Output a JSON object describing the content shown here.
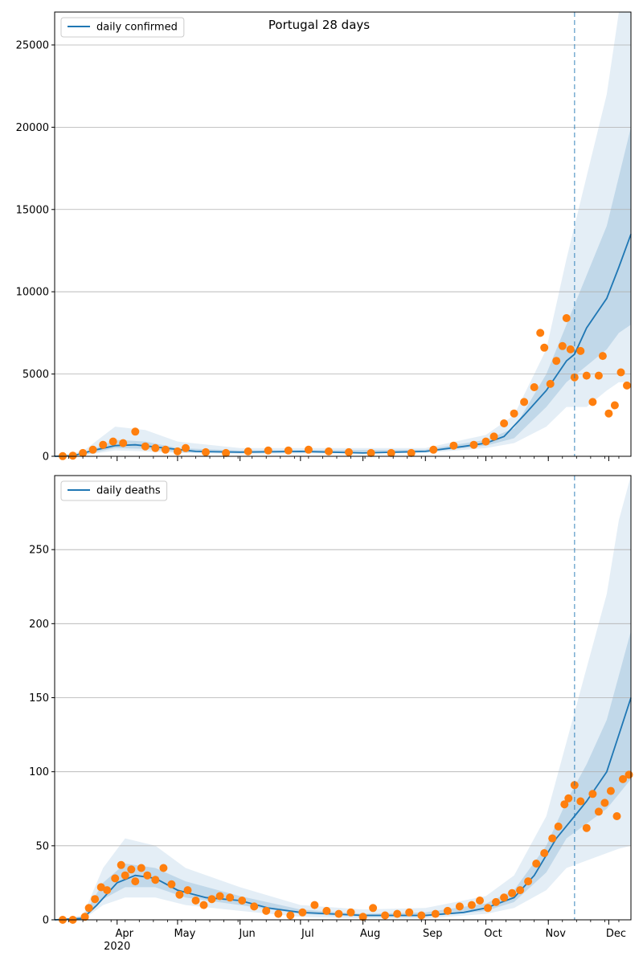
{
  "title": "Portugal 28 days",
  "colors": {
    "line": "#1f77b4",
    "points": "#ff7f0e",
    "band": "#1f77b4",
    "forecast_line": "#1f77b4",
    "grid": "#b0b0b0"
  },
  "chart_data": [
    {
      "type": "line",
      "legend": "daily confirmed",
      "legend_location": "upper-left",
      "grid": "y",
      "x_range": [
        "2020-03-01",
        "2020-12-12"
      ],
      "ylim": [
        0,
        27000
      ],
      "yticks": [
        0,
        5000,
        10000,
        15000,
        20000,
        25000
      ],
      "forecast_start": "2020-11-14",
      "model_curve": [
        [
          "2020-03-01",
          0
        ],
        [
          "2020-03-10",
          30
        ],
        [
          "2020-03-20",
          350
        ],
        [
          "2020-03-31",
          650
        ],
        [
          "2020-04-10",
          700
        ],
        [
          "2020-04-25",
          500
        ],
        [
          "2020-05-10",
          300
        ],
        [
          "2020-06-01",
          250
        ],
        [
          "2020-07-01",
          300
        ],
        [
          "2020-08-01",
          200
        ],
        [
          "2020-09-01",
          300
        ],
        [
          "2020-09-20",
          600
        ],
        [
          "2020-10-01",
          800
        ],
        [
          "2020-10-10",
          1200
        ],
        [
          "2020-10-20",
          2500
        ],
        [
          "2020-10-31",
          4000
        ],
        [
          "2020-11-10",
          5800
        ],
        [
          "2020-11-14",
          6200
        ],
        [
          "2020-11-20",
          7800
        ],
        [
          "2020-11-30",
          9600
        ],
        [
          "2020-12-06",
          11500
        ],
        [
          "2020-12-12",
          13500
        ]
      ],
      "band_outer": [
        [
          "2020-03-01",
          0,
          0
        ],
        [
          "2020-03-15",
          50,
          300
        ],
        [
          "2020-03-31",
          350,
          1800
        ],
        [
          "2020-04-15",
          300,
          1600
        ],
        [
          "2020-05-01",
          200,
          900
        ],
        [
          "2020-06-01",
          150,
          500
        ],
        [
          "2020-09-01",
          200,
          500
        ],
        [
          "2020-10-01",
          500,
          1300
        ],
        [
          "2020-10-15",
          800,
          2500
        ],
        [
          "2020-10-31",
          1800,
          6500
        ],
        [
          "2020-11-10",
          3000,
          12000
        ],
        [
          "2020-11-20",
          3000,
          17000
        ],
        [
          "2020-11-30",
          4000,
          22000
        ],
        [
          "2020-12-06",
          4500,
          27000
        ],
        [
          "2020-12-12",
          4500,
          27000
        ]
      ],
      "band_inner": [
        [
          "2020-03-01",
          0,
          0
        ],
        [
          "2020-03-15",
          80,
          150
        ],
        [
          "2020-03-31",
          500,
          1000
        ],
        [
          "2020-04-15",
          450,
          900
        ],
        [
          "2020-05-01",
          250,
          500
        ],
        [
          "2020-06-01",
          200,
          350
        ],
        [
          "2020-09-01",
          250,
          400
        ],
        [
          "2020-10-01",
          650,
          1000
        ],
        [
          "2020-10-15",
          1100,
          1700
        ],
        [
          "2020-10-31",
          3000,
          5000
        ],
        [
          "2020-11-10",
          4500,
          8000
        ],
        [
          "2020-11-20",
          5500,
          11000
        ],
        [
          "2020-11-30",
          6500,
          14000
        ],
        [
          "2020-12-06",
          7500,
          17000
        ],
        [
          "2020-12-12",
          8000,
          20000
        ]
      ],
      "observed": [
        [
          "2020-03-05",
          10
        ],
        [
          "2020-03-10",
          40
        ],
        [
          "2020-03-15",
          200
        ],
        [
          "2020-03-20",
          400
        ],
        [
          "2020-03-25",
          700
        ],
        [
          "2020-03-30",
          900
        ],
        [
          "2020-04-04",
          800
        ],
        [
          "2020-04-10",
          1500
        ],
        [
          "2020-04-15",
          600
        ],
        [
          "2020-04-20",
          500
        ],
        [
          "2020-04-25",
          400
        ],
        [
          "2020-05-01",
          300
        ],
        [
          "2020-05-05",
          500
        ],
        [
          "2020-05-15",
          250
        ],
        [
          "2020-05-25",
          200
        ],
        [
          "2020-06-05",
          300
        ],
        [
          "2020-06-15",
          350
        ],
        [
          "2020-06-25",
          350
        ],
        [
          "2020-07-05",
          400
        ],
        [
          "2020-07-15",
          300
        ],
        [
          "2020-07-25",
          250
        ],
        [
          "2020-08-05",
          200
        ],
        [
          "2020-08-15",
          200
        ],
        [
          "2020-08-25",
          200
        ],
        [
          "2020-09-05",
          400
        ],
        [
          "2020-09-15",
          650
        ],
        [
          "2020-09-25",
          700
        ],
        [
          "2020-10-01",
          900
        ],
        [
          "2020-10-05",
          1200
        ],
        [
          "2020-10-10",
          2000
        ],
        [
          "2020-10-15",
          2600
        ],
        [
          "2020-10-20",
          3300
        ],
        [
          "2020-10-25",
          4200
        ],
        [
          "2020-10-28",
          7500
        ],
        [
          "2020-10-30",
          6600
        ],
        [
          "2020-11-02",
          4400
        ],
        [
          "2020-11-05",
          5800
        ],
        [
          "2020-11-08",
          6700
        ],
        [
          "2020-11-10",
          8400
        ],
        [
          "2020-11-12",
          6500
        ],
        [
          "2020-11-14",
          4800
        ],
        [
          "2020-11-17",
          6400
        ],
        [
          "2020-11-20",
          4900
        ],
        [
          "2020-11-23",
          3300
        ],
        [
          "2020-11-26",
          4900
        ],
        [
          "2020-11-28",
          6100
        ],
        [
          "2020-12-01",
          2600
        ],
        [
          "2020-12-04",
          3100
        ],
        [
          "2020-12-07",
          5100
        ],
        [
          "2020-12-10",
          4300
        ]
      ]
    },
    {
      "type": "line",
      "legend": "daily deaths",
      "legend_location": "upper-left",
      "grid": "y",
      "x_range": [
        "2020-03-01",
        "2020-12-12"
      ],
      "ylim": [
        0,
        300
      ],
      "yticks": [
        0,
        50,
        100,
        150,
        200,
        250
      ],
      "xticks": [
        "Apr",
        "May",
        "Jun",
        "Jul",
        "Aug",
        "Sep",
        "Oct",
        "Nov",
        "Dec"
      ],
      "xtick_dates": [
        "2020-04-01",
        "2020-05-01",
        "2020-06-01",
        "2020-07-01",
        "2020-08-01",
        "2020-09-01",
        "2020-10-01",
        "2020-11-01",
        "2020-12-01"
      ],
      "year_label": "2020",
      "forecast_start": "2020-11-14",
      "model_curve": [
        [
          "2020-03-01",
          0
        ],
        [
          "2020-03-15",
          1
        ],
        [
          "2020-03-22",
          10
        ],
        [
          "2020-04-01",
          25
        ],
        [
          "2020-04-10",
          30
        ],
        [
          "2020-04-20",
          28
        ],
        [
          "2020-05-01",
          20
        ],
        [
          "2020-05-15",
          15
        ],
        [
          "2020-06-01",
          13
        ],
        [
          "2020-06-15",
          8
        ],
        [
          "2020-07-01",
          5
        ],
        [
          "2020-08-01",
          3
        ],
        [
          "2020-09-01",
          3
        ],
        [
          "2020-09-20",
          5
        ],
        [
          "2020-10-01",
          8
        ],
        [
          "2020-10-15",
          15
        ],
        [
          "2020-10-25",
          30
        ],
        [
          "2020-11-05",
          55
        ],
        [
          "2020-11-14",
          70
        ],
        [
          "2020-11-20",
          80
        ],
        [
          "2020-11-30",
          100
        ],
        [
          "2020-12-06",
          125
        ],
        [
          "2020-12-12",
          150
        ]
      ],
      "band_outer": [
        [
          "2020-03-01",
          0,
          0
        ],
        [
          "2020-03-15",
          0,
          3
        ],
        [
          "2020-03-25",
          10,
          35
        ],
        [
          "2020-04-05",
          15,
          55
        ],
        [
          "2020-04-20",
          15,
          50
        ],
        [
          "2020-05-05",
          10,
          35
        ],
        [
          "2020-06-01",
          6,
          22
        ],
        [
          "2020-07-01",
          2,
          10
        ],
        [
          "2020-08-01",
          1,
          7
        ],
        [
          "2020-09-01",
          1,
          8
        ],
        [
          "2020-10-01",
          4,
          16
        ],
        [
          "2020-10-15",
          8,
          30
        ],
        [
          "2020-10-31",
          20,
          70
        ],
        [
          "2020-11-10",
          35,
          120
        ],
        [
          "2020-11-20",
          40,
          170
        ],
        [
          "2020-11-30",
          45,
          220
        ],
        [
          "2020-12-06",
          48,
          270
        ],
        [
          "2020-12-12",
          50,
          300
        ]
      ],
      "band_inner": [
        [
          "2020-03-01",
          0,
          0
        ],
        [
          "2020-03-15",
          0,
          2
        ],
        [
          "2020-03-25",
          14,
          25
        ],
        [
          "2020-04-05",
          22,
          38
        ],
        [
          "2020-04-20",
          22,
          35
        ],
        [
          "2020-05-05",
          15,
          26
        ],
        [
          "2020-06-01",
          10,
          16
        ],
        [
          "2020-07-01",
          4,
          7
        ],
        [
          "2020-08-01",
          2,
          4
        ],
        [
          "2020-09-01",
          2,
          5
        ],
        [
          "2020-10-01",
          6,
          11
        ],
        [
          "2020-10-15",
          12,
          20
        ],
        [
          "2020-10-31",
          32,
          50
        ],
        [
          "2020-11-10",
          55,
          80
        ],
        [
          "2020-11-20",
          65,
          105
        ],
        [
          "2020-11-30",
          75,
          135
        ],
        [
          "2020-12-06",
          85,
          165
        ],
        [
          "2020-12-12",
          95,
          195
        ]
      ],
      "observed": [
        [
          "2020-03-05",
          0
        ],
        [
          "2020-03-10",
          0
        ],
        [
          "2020-03-16",
          2
        ],
        [
          "2020-03-18",
          8
        ],
        [
          "2020-03-21",
          14
        ],
        [
          "2020-03-24",
          22
        ],
        [
          "2020-03-27",
          20
        ],
        [
          "2020-03-31",
          28
        ],
        [
          "2020-04-03",
          37
        ],
        [
          "2020-04-05",
          30
        ],
        [
          "2020-04-08",
          34
        ],
        [
          "2020-04-10",
          26
        ],
        [
          "2020-04-13",
          35
        ],
        [
          "2020-04-16",
          30
        ],
        [
          "2020-04-20",
          27
        ],
        [
          "2020-04-24",
          35
        ],
        [
          "2020-04-28",
          24
        ],
        [
          "2020-05-02",
          17
        ],
        [
          "2020-05-06",
          20
        ],
        [
          "2020-05-10",
          13
        ],
        [
          "2020-05-14",
          10
        ],
        [
          "2020-05-18",
          14
        ],
        [
          "2020-05-22",
          16
        ],
        [
          "2020-05-27",
          15
        ],
        [
          "2020-06-02",
          13
        ],
        [
          "2020-06-08",
          9
        ],
        [
          "2020-06-14",
          6
        ],
        [
          "2020-06-20",
          4
        ],
        [
          "2020-06-26",
          3
        ],
        [
          "2020-07-02",
          5
        ],
        [
          "2020-07-08",
          10
        ],
        [
          "2020-07-14",
          6
        ],
        [
          "2020-07-20",
          4
        ],
        [
          "2020-07-26",
          5
        ],
        [
          "2020-08-01",
          2
        ],
        [
          "2020-08-06",
          8
        ],
        [
          "2020-08-12",
          3
        ],
        [
          "2020-08-18",
          4
        ],
        [
          "2020-08-24",
          5
        ],
        [
          "2020-08-30",
          3
        ],
        [
          "2020-09-06",
          4
        ],
        [
          "2020-09-12",
          6
        ],
        [
          "2020-09-18",
          9
        ],
        [
          "2020-09-24",
          10
        ],
        [
          "2020-09-28",
          13
        ],
        [
          "2020-10-02",
          8
        ],
        [
          "2020-10-06",
          12
        ],
        [
          "2020-10-10",
          15
        ],
        [
          "2020-10-14",
          18
        ],
        [
          "2020-10-18",
          20
        ],
        [
          "2020-10-22",
          26
        ],
        [
          "2020-10-26",
          38
        ],
        [
          "2020-10-30",
          45
        ],
        [
          "2020-11-03",
          55
        ],
        [
          "2020-11-06",
          63
        ],
        [
          "2020-11-09",
          78
        ],
        [
          "2020-11-11",
          82
        ],
        [
          "2020-11-14",
          91
        ],
        [
          "2020-11-17",
          80
        ],
        [
          "2020-11-20",
          62
        ],
        [
          "2020-11-23",
          85
        ],
        [
          "2020-11-26",
          73
        ],
        [
          "2020-11-29",
          79
        ],
        [
          "2020-12-02",
          87
        ],
        [
          "2020-12-05",
          70
        ],
        [
          "2020-12-08",
          95
        ],
        [
          "2020-12-11",
          98
        ]
      ]
    }
  ]
}
